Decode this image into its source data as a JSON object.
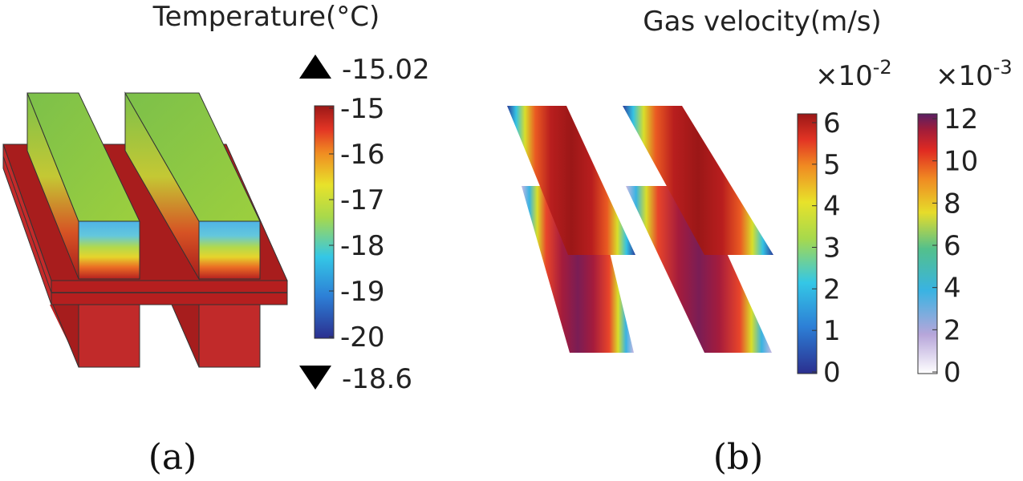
{
  "panel_a": {
    "title": "Temperature(°C)",
    "max_marker": "-15.02",
    "min_marker": "-18.6",
    "colorbar": {
      "ticks": [
        "-15",
        "-16",
        "-17",
        "-18",
        "-19",
        "-20"
      ]
    },
    "caption": "(a)"
  },
  "panel_b": {
    "title": "Gas velocity(m/s)",
    "colorbar_1": {
      "exponent_base": "×10",
      "exponent": "-2",
      "ticks": [
        "6",
        "5",
        "4",
        "3",
        "2",
        "1",
        "0"
      ]
    },
    "colorbar_2": {
      "exponent_base": "×10",
      "exponent": "-3",
      "ticks": [
        "12",
        "10",
        "8",
        "6",
        "4",
        "2",
        "0"
      ]
    },
    "caption": "(b)"
  },
  "colors": {
    "hot": "#a31a1a",
    "cold": "#2a2a8f",
    "mid": "#e3de28",
    "warm_green": "#7cc04a"
  }
}
